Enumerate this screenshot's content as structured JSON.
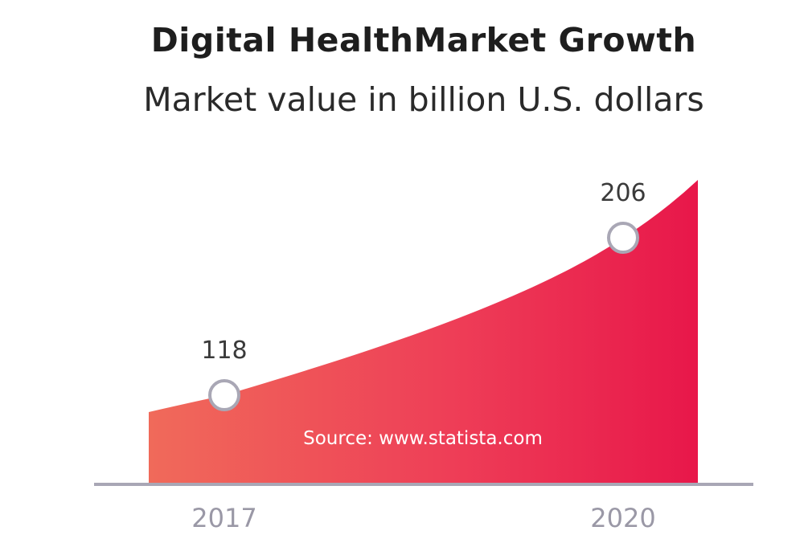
{
  "chart_data": {
    "type": "area",
    "title": "Digital HealthMarket Growth",
    "subtitle": "Market value in billion U.S. dollars",
    "x": [
      2017,
      2020
    ],
    "tick_labels": [
      "2017",
      "2020"
    ],
    "values": [
      118,
      206
    ],
    "data_labels": [
      "118",
      "206"
    ],
    "source": "Source: www.statista.com",
    "grid": false,
    "legend": "none",
    "colors": {
      "gradient_start": "#f06a5a",
      "gradient_mid": "#ee3e57",
      "gradient_end": "#e8174a",
      "marker_stroke": "#a9a7b5",
      "marker_fill": "#ffffff",
      "axis": "#a9a7b5"
    }
  }
}
